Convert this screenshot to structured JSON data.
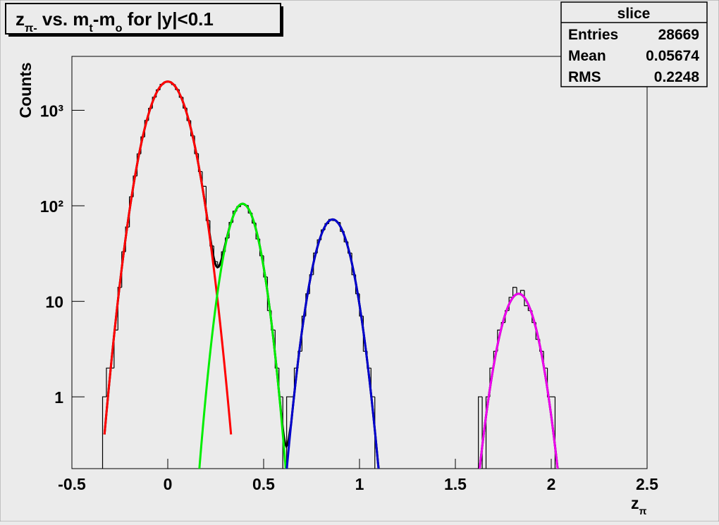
{
  "chart_data": {
    "type": "histogram",
    "title": [
      {
        "text": "z"
      },
      {
        "text": "π-",
        "sub": true
      },
      {
        "text": " vs. m"
      },
      {
        "text": "t",
        "sub": true
      },
      {
        "text": "-m"
      },
      {
        "text": "o",
        "sub": true
      },
      {
        "text": " for |y|<0.1"
      }
    ],
    "xlabel": [
      {
        "text": "z"
      },
      {
        "text": "π",
        "sub": true
      }
    ],
    "ylabel": "Counts",
    "ylog": true,
    "xlim": [
      -0.5,
      2.5
    ],
    "ylim": [
      0.177,
      3670
    ],
    "xticks": [
      -0.5,
      0,
      0.5,
      1,
      1.5,
      2,
      2.5
    ],
    "yticks": [
      1,
      10,
      {
        "value": 100,
        "label": "10²"
      },
      {
        "value": 1000,
        "label": "10³"
      }
    ],
    "color": "#000000",
    "bins": [
      -0.34,
      -0.32,
      -0.3,
      -0.28,
      -0.26,
      -0.24,
      -0.22,
      -0.2,
      -0.18,
      -0.16,
      -0.14,
      -0.12,
      -0.1,
      -0.08,
      -0.06,
      -0.04,
      -0.02,
      0,
      0.02,
      0.04,
      0.06,
      0.08,
      0.1,
      0.12,
      0.14,
      0.16,
      0.18,
      0.2,
      0.22,
      0.24,
      0.26,
      0.28,
      0.3,
      0.32,
      0.34,
      0.36,
      0.38,
      0.4,
      0.42,
      0.44,
      0.46,
      0.48,
      0.5,
      0.52,
      0.54,
      0.56,
      0.58,
      0.6,
      0.62,
      0.64,
      0.66,
      0.68,
      0.7,
      0.72,
      0.74,
      0.76,
      0.78,
      0.8,
      0.82,
      0.84,
      0.86,
      0.88,
      0.9,
      0.92,
      0.94,
      0.96,
      0.98,
      1,
      1.02,
      1.04,
      1.06,
      1.08,
      1.1,
      1.12,
      1.14,
      1.16,
      1.18,
      1.2,
      1.22,
      1.24,
      1.26,
      1.28,
      1.3,
      1.32,
      1.34,
      1.36,
      1.38,
      1.4,
      1.42,
      1.44,
      1.46,
      1.48,
      1.5,
      1.52,
      1.54,
      1.56,
      1.58,
      1.6,
      1.62,
      1.64,
      1.66,
      1.68,
      1.7,
      1.72,
      1.74,
      1.76,
      1.78,
      1.8,
      1.82,
      1.84,
      1.86,
      1.88,
      1.9,
      1.92,
      1.94,
      1.96,
      1.98,
      2,
      2.02,
      2.04,
      2.06
    ],
    "values": [
      1,
      2,
      2,
      5,
      14,
      33,
      60,
      124,
      205,
      350,
      527,
      784,
      1050,
      1371,
      1638,
      1870,
      1979,
      1990,
      1858,
      1650,
      1370,
      1055,
      781,
      540,
      352,
      228,
      160,
      70,
      38,
      26,
      24,
      33,
      46,
      67,
      88,
      98,
      104,
      101,
      84,
      66,
      45,
      30,
      18,
      8,
      5,
      2,
      1,
      0,
      1,
      1,
      2,
      3,
      7,
      12,
      19,
      32,
      44,
      56,
      65,
      72,
      70,
      67,
      54,
      42,
      32,
      19,
      12,
      7,
      3,
      2,
      1,
      0,
      0,
      0,
      0,
      0,
      0,
      0,
      0,
      0,
      0,
      0,
      0,
      0,
      0,
      0,
      0,
      0,
      0,
      0,
      0,
      0,
      0,
      0,
      0,
      0,
      0,
      0,
      1,
      0,
      1,
      2,
      3,
      5,
      6,
      8,
      11,
      14,
      12,
      13,
      9,
      8,
      6,
      4,
      3,
      2,
      1,
      1,
      0,
      0
    ],
    "total_fit_color": "#000000",
    "fits": [
      {
        "color": "#ff0000",
        "constant": 2000,
        "mean": 0,
        "sigma": 0.08,
        "range": [
          -0.33,
          0.33
        ]
      },
      {
        "color": "#00ee00",
        "constant": 105,
        "mean": 0.39,
        "sigma": 0.063,
        "range": [
          0.12,
          0.64
        ]
      },
      {
        "color": "#0000cc",
        "constant": 72,
        "mean": 0.86,
        "sigma": 0.069,
        "range": [
          0.56,
          1.13
        ]
      },
      {
        "color": "#ee00ee",
        "constant": 12,
        "mean": 1.83,
        "sigma": 0.07,
        "range": [
          1.5,
          2.15
        ]
      }
    ],
    "stats": {
      "title": "slice",
      "rows": [
        {
          "label": "Entries",
          "value": 28669
        },
        {
          "label": "Mean",
          "value": 0.05674
        },
        {
          "label": "RMS",
          "value": 0.2248
        }
      ]
    }
  }
}
